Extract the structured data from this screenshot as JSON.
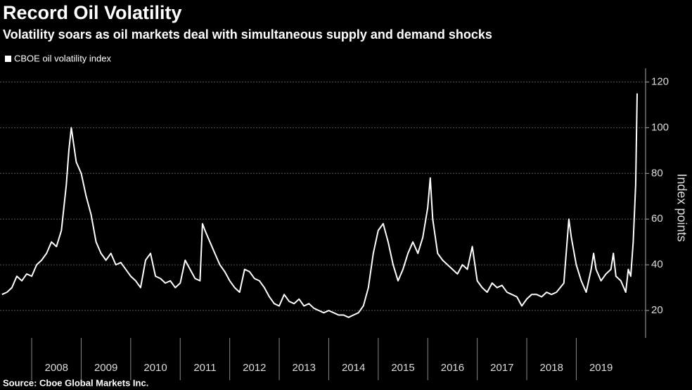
{
  "chart_data": {
    "type": "line",
    "title": "Record Oil Volatility",
    "subtitle": "Volatility soars as oil markets deal with simultaneous supply and demand shocks",
    "source": "Source: Cboe Global Markets Inc.",
    "y_label": "Index points",
    "legend_position": "top-left",
    "grid": true,
    "xlim": [
      2007.36,
      2020.4
    ],
    "ylim": [
      8,
      126
    ],
    "yticks": [
      20,
      40,
      60,
      80,
      100,
      120
    ],
    "xticks": [
      2008,
      2009,
      2010,
      2011,
      2012,
      2013,
      2014,
      2015,
      2016,
      2017,
      2018,
      2019
    ],
    "x": [
      2007.4,
      2007.5,
      2007.6,
      2007.7,
      2007.8,
      2007.9,
      2008.0,
      2008.1,
      2008.2,
      2008.3,
      2008.4,
      2008.5,
      2008.6,
      2008.7,
      2008.75,
      2008.8,
      2008.9,
      2009.0,
      2009.1,
      2009.2,
      2009.3,
      2009.4,
      2009.5,
      2009.6,
      2009.7,
      2009.8,
      2009.9,
      2010.0,
      2010.1,
      2010.2,
      2010.3,
      2010.4,
      2010.5,
      2010.6,
      2010.7,
      2010.8,
      2010.9,
      2011.0,
      2011.1,
      2011.2,
      2011.3,
      2011.4,
      2011.45,
      2011.5,
      2011.6,
      2011.7,
      2011.8,
      2011.9,
      2012.0,
      2012.1,
      2012.2,
      2012.3,
      2012.4,
      2012.5,
      2012.6,
      2012.7,
      2012.8,
      2012.9,
      2013.0,
      2013.1,
      2013.2,
      2013.3,
      2013.4,
      2013.5,
      2013.6,
      2013.7,
      2013.8,
      2013.9,
      2014.0,
      2014.1,
      2014.2,
      2014.3,
      2014.4,
      2014.5,
      2014.6,
      2014.7,
      2014.8,
      2014.9,
      2015.0,
      2015.1,
      2015.2,
      2015.3,
      2015.4,
      2015.5,
      2015.6,
      2015.7,
      2015.8,
      2015.9,
      2016.0,
      2016.05,
      2016.1,
      2016.2,
      2016.3,
      2016.4,
      2016.5,
      2016.6,
      2016.7,
      2016.8,
      2016.9,
      2017.0,
      2017.1,
      2017.2,
      2017.3,
      2017.4,
      2017.5,
      2017.6,
      2017.7,
      2017.8,
      2017.9,
      2018.0,
      2018.1,
      2018.2,
      2018.3,
      2018.4,
      2018.5,
      2018.6,
      2018.75,
      2018.85,
      2018.9,
      2019.0,
      2019.1,
      2019.2,
      2019.3,
      2019.35,
      2019.4,
      2019.5,
      2019.6,
      2019.7,
      2019.75,
      2019.8,
      2019.9,
      2020.0,
      2020.05,
      2020.1,
      2020.15,
      2020.2,
      2020.23
    ],
    "series": [
      {
        "name": "CBOE oil volatility index",
        "color": "#ffffff",
        "values": [
          27,
          28,
          30,
          35,
          33,
          36,
          35,
          40,
          42,
          45,
          50,
          48,
          55,
          75,
          90,
          100,
          85,
          80,
          70,
          62,
          50,
          45,
          42,
          45,
          40,
          41,
          38,
          35,
          33,
          30,
          42,
          45,
          35,
          34,
          32,
          33,
          30,
          32,
          42,
          38,
          34,
          33,
          58,
          55,
          50,
          45,
          40,
          37,
          33,
          30,
          28,
          38,
          37,
          34,
          33,
          30,
          26,
          23,
          22,
          27,
          24,
          23,
          25,
          22,
          23,
          21,
          20,
          19,
          20,
          19,
          18,
          18,
          17,
          18,
          19,
          22,
          30,
          45,
          55,
          58,
          50,
          40,
          33,
          38,
          45,
          50,
          45,
          52,
          65,
          78,
          60,
          45,
          42,
          40,
          38,
          36,
          40,
          38,
          48,
          33,
          30,
          28,
          32,
          30,
          31,
          28,
          27,
          26,
          22,
          25,
          27,
          27,
          26,
          28,
          27,
          28,
          32,
          60,
          52,
          40,
          33,
          28,
          38,
          45,
          38,
          33,
          36,
          38,
          45,
          35,
          33,
          28,
          38,
          35,
          50,
          75,
          115
        ]
      }
    ]
  }
}
